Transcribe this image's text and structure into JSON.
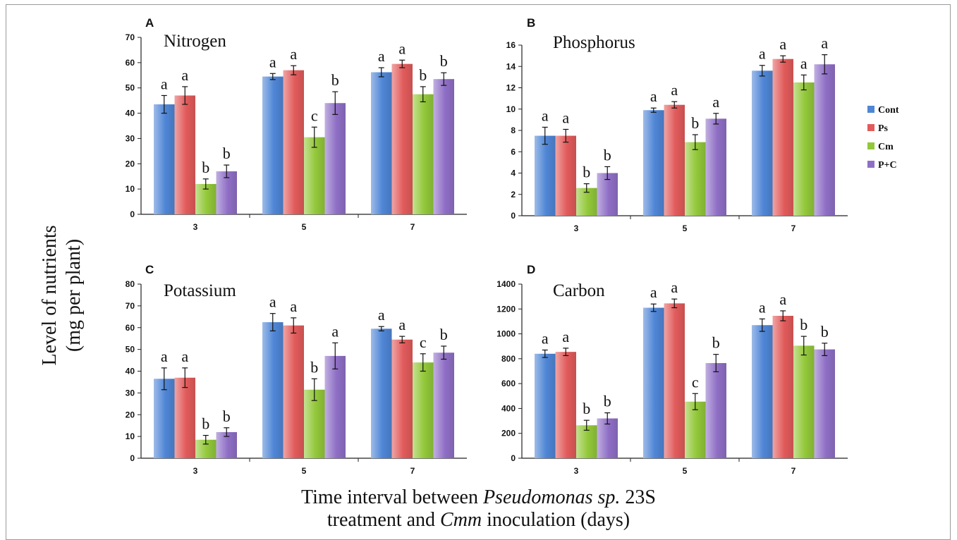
{
  "figure": {
    "ylabel_line1": "Level of nutrients",
    "ylabel_line2": "(mg per plant)",
    "xlabel_line1_pre": "Time interval between ",
    "xlabel_line1_italic": "Pseudomonas sp.",
    "xlabel_line1_post": " 23S",
    "xlabel_line2_pre": "treatment and ",
    "xlabel_line2_italic": "Cmm",
    "xlabel_line2_post": " inoculation (days)"
  },
  "legend": [
    {
      "name": "Cont",
      "color": "#4f86d6"
    },
    {
      "name": "Ps",
      "color": "#e25b5b"
    },
    {
      "name": "Cm",
      "color": "#93c83a"
    },
    {
      "name": "P+C",
      "color": "#8f6fc6"
    }
  ],
  "chart_data": [
    {
      "type": "bar",
      "panel": "A",
      "title": "Nitrogen",
      "categories": [
        "3",
        "5",
        "7"
      ],
      "ylim": [
        0,
        70
      ],
      "yticks": [
        0,
        10,
        20,
        30,
        40,
        50,
        60,
        70
      ],
      "series": [
        {
          "name": "Cont",
          "values": [
            43.5,
            54.5,
            56.2
          ],
          "errors": [
            3.5,
            1.2,
            1.8
          ],
          "letters": [
            "a",
            "a",
            "a"
          ]
        },
        {
          "name": "Ps",
          "values": [
            47,
            57,
            59.5
          ],
          "errors": [
            3.5,
            1.8,
            1.5
          ],
          "letters": [
            "a",
            "a",
            "a"
          ]
        },
        {
          "name": "Cm",
          "values": [
            12,
            30.5,
            47.5
          ],
          "errors": [
            2,
            4,
            3
          ],
          "letters": [
            "b",
            "c",
            "b"
          ]
        },
        {
          "name": "P+C",
          "values": [
            17,
            44,
            53.5
          ],
          "errors": [
            2.5,
            4.5,
            2.5
          ],
          "letters": [
            "b",
            "b",
            "b"
          ]
        }
      ]
    },
    {
      "type": "bar",
      "panel": "B",
      "title": "Phosphorus",
      "categories": [
        "3",
        "5",
        "7"
      ],
      "ylim": [
        0,
        16
      ],
      "yticks": [
        0,
        2,
        4,
        6,
        8,
        10,
        12,
        14,
        16
      ],
      "series": [
        {
          "name": "Cont",
          "values": [
            7.5,
            9.9,
            13.6
          ],
          "errors": [
            0.8,
            0.2,
            0.5
          ],
          "letters": [
            "a",
            "a",
            "a"
          ]
        },
        {
          "name": "Ps",
          "values": [
            7.5,
            10.4,
            14.7
          ],
          "errors": [
            0.6,
            0.3,
            0.3
          ],
          "letters": [
            "a",
            "a",
            "a"
          ]
        },
        {
          "name": "Cm",
          "values": [
            2.6,
            6.9,
            12.5
          ],
          "errors": [
            0.4,
            0.7,
            0.7
          ],
          "letters": [
            "b",
            "b",
            "a"
          ]
        },
        {
          "name": "P+C",
          "values": [
            4,
            9.1,
            14.2
          ],
          "errors": [
            0.6,
            0.5,
            0.9
          ],
          "letters": [
            "b",
            "a",
            "a"
          ]
        }
      ]
    },
    {
      "type": "bar",
      "panel": "C",
      "title": "Potassium",
      "categories": [
        "3",
        "5",
        "7"
      ],
      "ylim": [
        0,
        80
      ],
      "yticks": [
        0,
        10,
        20,
        30,
        40,
        50,
        60,
        70,
        80
      ],
      "series": [
        {
          "name": "Cont",
          "values": [
            36.5,
            62.5,
            59.5
          ],
          "errors": [
            5,
            4,
            1
          ],
          "letters": [
            "a",
            "a",
            "a"
          ]
        },
        {
          "name": "Ps",
          "values": [
            37,
            61,
            54.5
          ],
          "errors": [
            4.5,
            3.5,
            1.5
          ],
          "letters": [
            "a",
            "a",
            "a"
          ]
        },
        {
          "name": "Cm",
          "values": [
            8.5,
            31.5,
            44
          ],
          "errors": [
            2,
            5,
            4
          ],
          "letters": [
            "b",
            "b",
            "c"
          ]
        },
        {
          "name": "P+C",
          "values": [
            12,
            47,
            48.5
          ],
          "errors": [
            2,
            6,
            3
          ],
          "letters": [
            "b",
            "a",
            "b"
          ]
        }
      ]
    },
    {
      "type": "bar",
      "panel": "D",
      "title": "Carbon",
      "categories": [
        "3",
        "5",
        "7"
      ],
      "ylim": [
        0,
        1400
      ],
      "yticks": [
        0,
        200,
        400,
        600,
        800,
        1000,
        1200,
        1400
      ],
      "series": [
        {
          "name": "Cont",
          "values": [
            840,
            1210,
            1070
          ],
          "errors": [
            30,
            30,
            50
          ],
          "letters": [
            "a",
            "a",
            "a"
          ]
        },
        {
          "name": "Ps",
          "values": [
            855,
            1245,
            1145
          ],
          "errors": [
            30,
            35,
            40
          ],
          "letters": [
            "a",
            "a",
            "a"
          ]
        },
        {
          "name": "Cm",
          "values": [
            265,
            455,
            905
          ],
          "errors": [
            40,
            65,
            75
          ],
          "letters": [
            "b",
            "c",
            "b"
          ]
        },
        {
          "name": "P+C",
          "values": [
            320,
            765,
            875
          ],
          "errors": [
            45,
            70,
            50
          ],
          "letters": [
            "b",
            "b",
            "b"
          ]
        }
      ]
    }
  ]
}
